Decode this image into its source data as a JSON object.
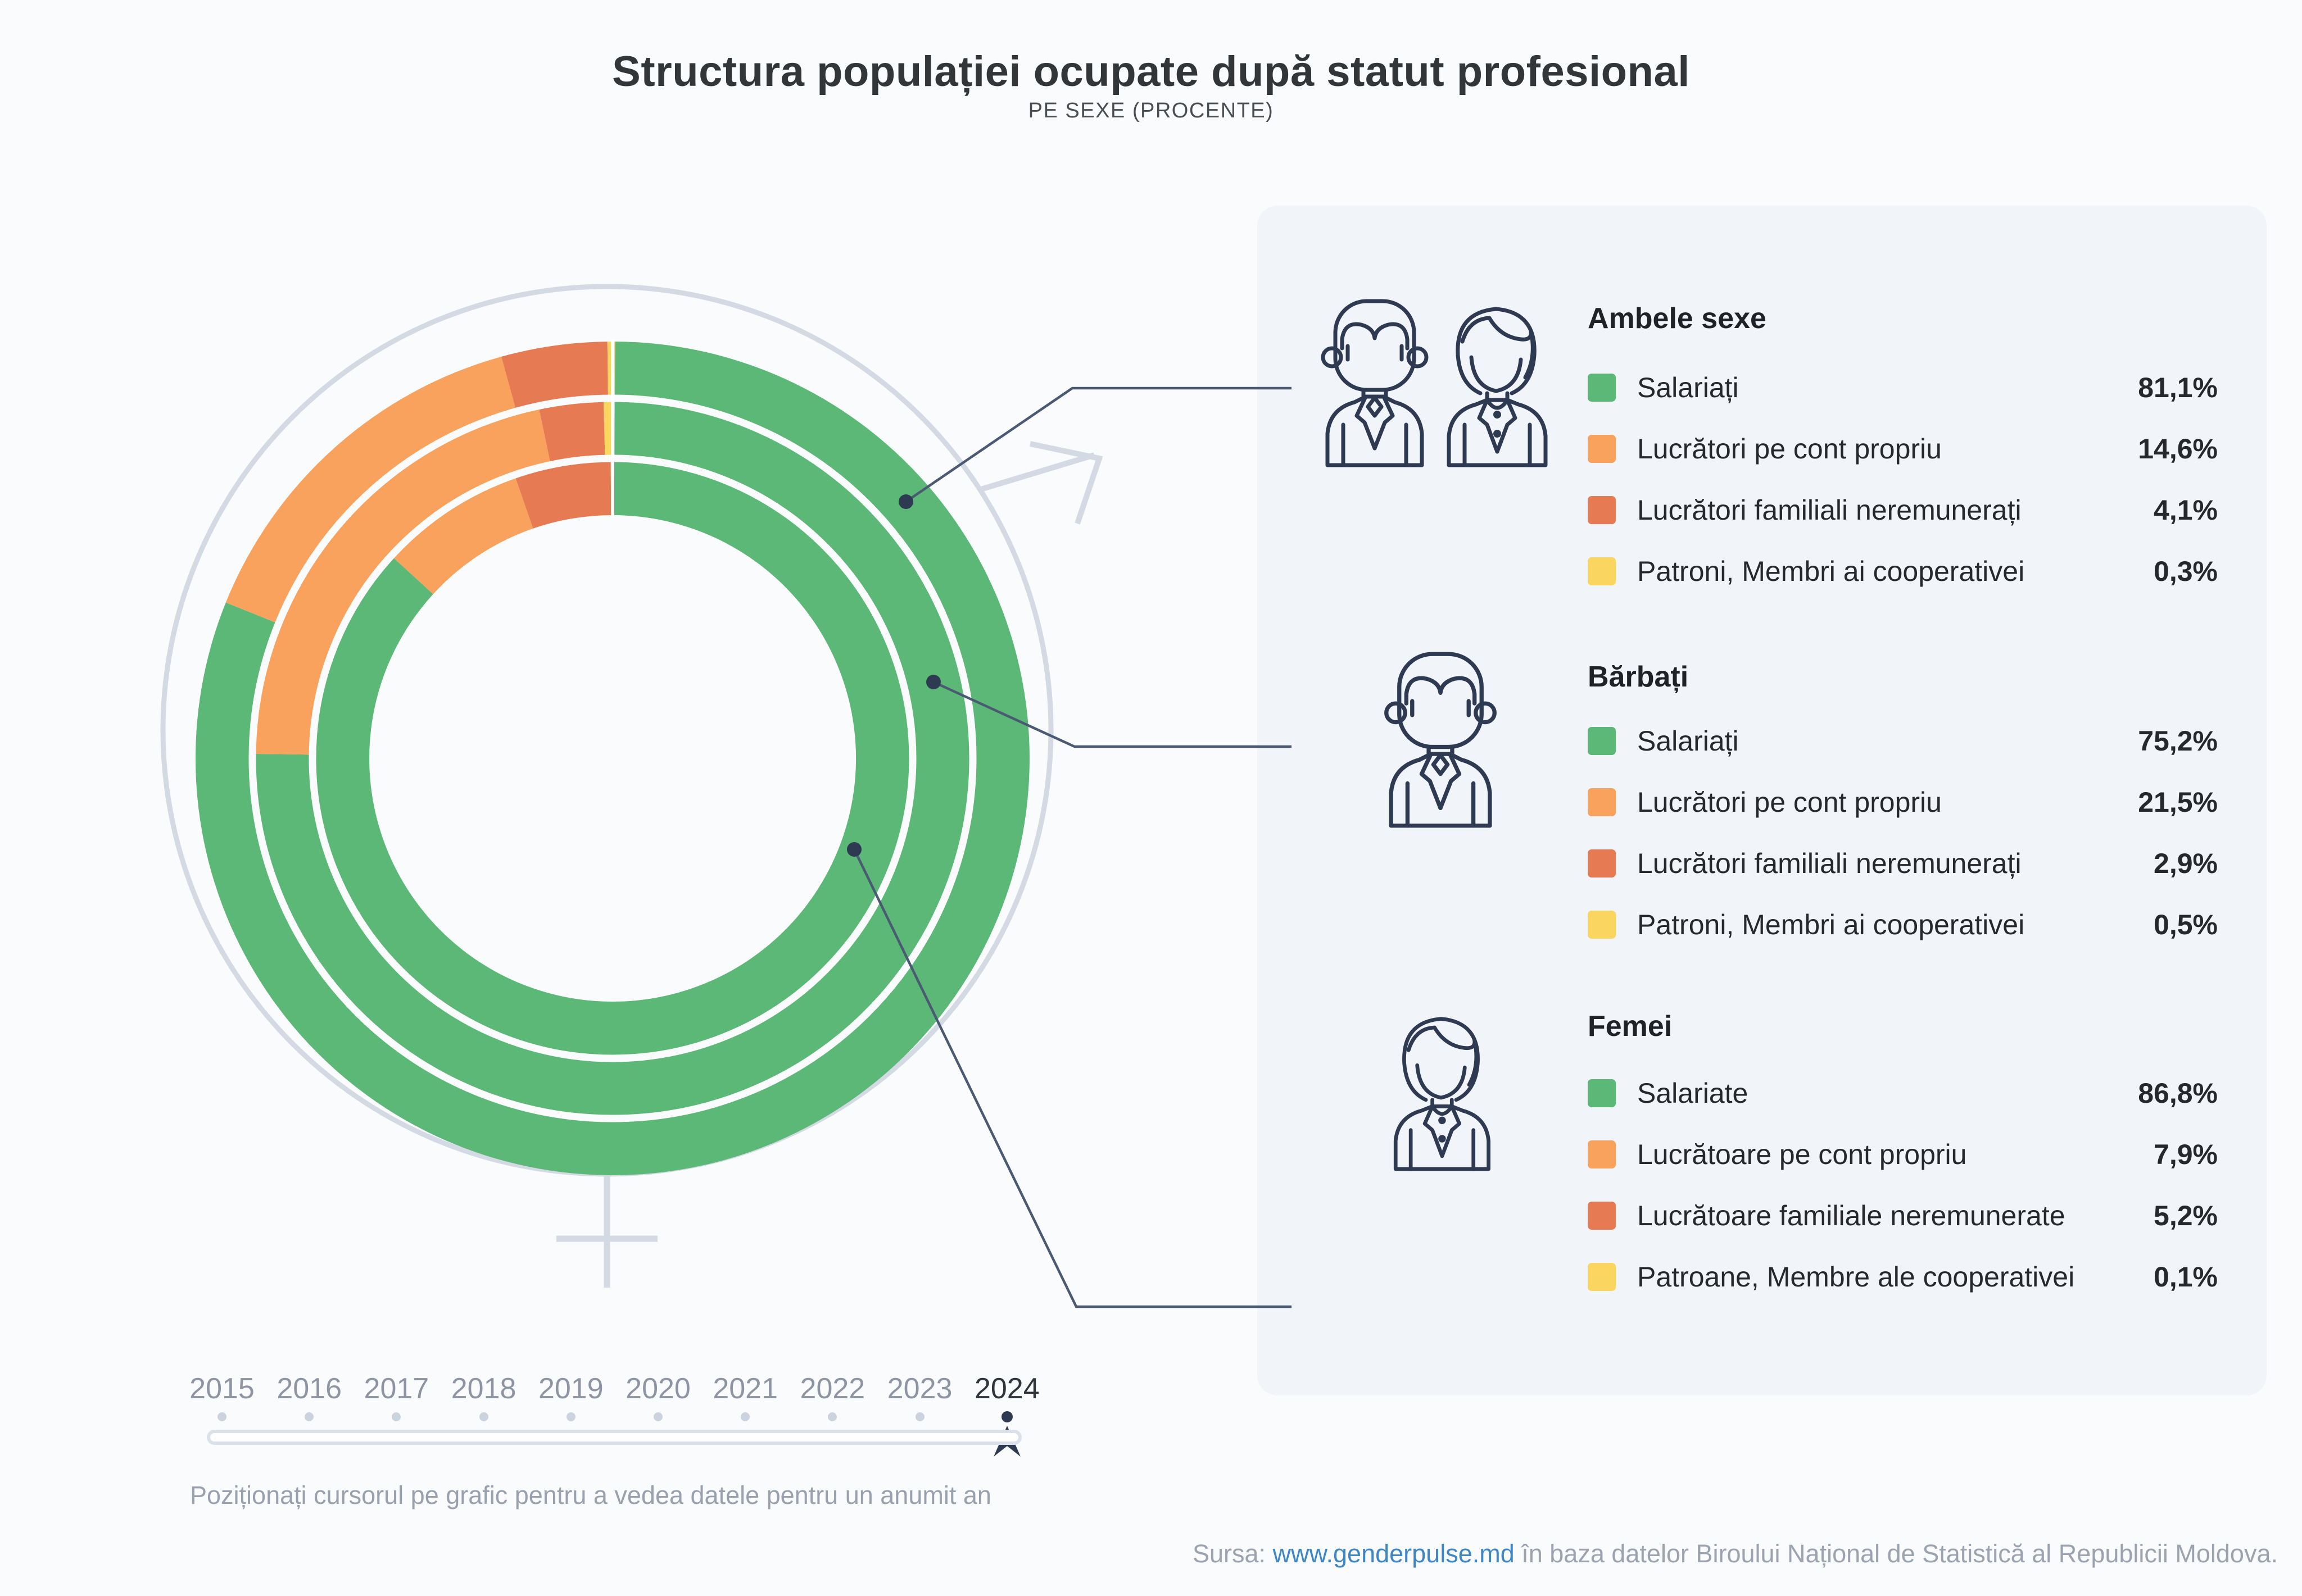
{
  "title": "Structura populației ocupate după statut profesional",
  "subtitle": "PE SEXE (PROCENTE)",
  "colors": {
    "green": "#5CB876",
    "orange": "#F9A25D",
    "red": "#E67A52",
    "yellow": "#FAD55F",
    "navy": "#2E3A52",
    "connector": "#4A5A72",
    "symbol_gray": "#D3DAE3",
    "card_bg": "#F1F4F8"
  },
  "chart_data": {
    "type": "donut-multi-ring",
    "unit": "percent",
    "start_angle_deg": 0,
    "direction": "clockwise",
    "categories": [
      "Salariați",
      "Lucrători pe cont propriu",
      "Lucrători familiali neremunerați",
      "Patroni, Membri ai cooperativei"
    ],
    "color_order": [
      "green",
      "orange",
      "red",
      "yellow"
    ],
    "rings": [
      {
        "name": "Ambele sexe",
        "position": "outer",
        "values": [
          81.1,
          14.6,
          4.1,
          0.3
        ]
      },
      {
        "name": "Bărbați",
        "position": "middle",
        "values": [
          75.2,
          21.5,
          2.9,
          0.5
        ]
      },
      {
        "name": "Femei",
        "position": "inner",
        "values": [
          86.8,
          7.9,
          5.2,
          0.1
        ]
      }
    ]
  },
  "legend": {
    "groups": [
      {
        "heading": "Ambele sexe",
        "icon": "man-woman-icon",
        "rows": [
          {
            "label": "Salariați",
            "value": "81,1%",
            "color": "green"
          },
          {
            "label": "Lucrători pe cont propriu",
            "value": "14,6%",
            "color": "orange"
          },
          {
            "label": "Lucrători familiali neremunerați",
            "value": "4,1%",
            "color": "red"
          },
          {
            "label": "Patroni, Membri ai cooperativei",
            "value": "0,3%",
            "color": "yellow"
          }
        ]
      },
      {
        "heading": "Bărbați",
        "icon": "man-icon",
        "rows": [
          {
            "label": "Salariați",
            "value": "75,2%",
            "color": "green"
          },
          {
            "label": "Lucrători pe cont propriu",
            "value": "21,5%",
            "color": "orange"
          },
          {
            "label": "Lucrători familiali neremunerați",
            "value": "2,9%",
            "color": "red"
          },
          {
            "label": "Patroni, Membri ai cooperativei",
            "value": "0,5%",
            "color": "yellow"
          }
        ]
      },
      {
        "heading": "Femei",
        "icon": "woman-icon",
        "rows": [
          {
            "label": "Salariate",
            "value": "86,8%",
            "color": "green"
          },
          {
            "label": "Lucrătoare pe cont propriu",
            "value": "7,9%",
            "color": "orange"
          },
          {
            "label": "Lucrătoare familiale neremunerate",
            "value": "5,2%",
            "color": "red"
          },
          {
            "label": "Patroane, Membre ale cooperativei",
            "value": "0,1%",
            "color": "yellow"
          }
        ]
      }
    ]
  },
  "timeline": {
    "years": [
      "2015",
      "2016",
      "2017",
      "2018",
      "2019",
      "2020",
      "2021",
      "2022",
      "2023",
      "2024"
    ],
    "selected": "2024",
    "instruction": "Poziționați cursorul pe grafic pentru a vedea datele pentru un anumit an"
  },
  "source": {
    "prefix": "Sursa: ",
    "link": "www.genderpulse.md",
    "suffix": " în baza datelor Biroului Național de Statistică al Republicii Moldova."
  }
}
